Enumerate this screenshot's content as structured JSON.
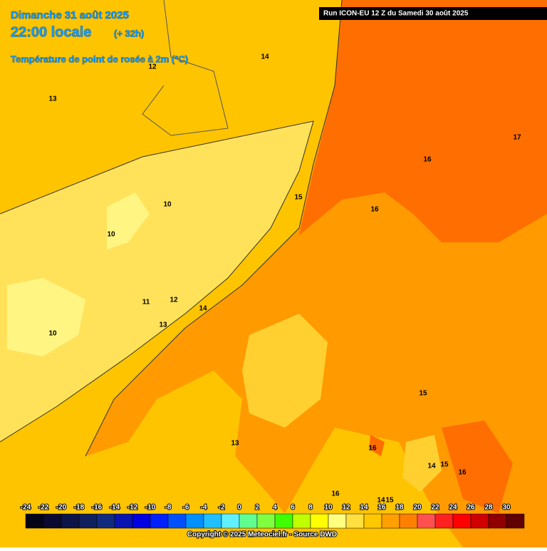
{
  "header": {
    "date": "Dimanche 31 août 2025",
    "time": "22:00 locale",
    "lead": "(+ 32h)",
    "variable": "Température de point de rosée à 2m (°C)",
    "run": "Run ICON-EU 12 Z du Samedi 30 août 2025"
  },
  "contour_labels": [
    "14",
    "12",
    "13",
    "17",
    "16",
    "15",
    "16",
    "10",
    "10",
    "11",
    "12",
    "14",
    "13",
    "10",
    "15",
    "13",
    "16",
    "14",
    "15",
    "16",
    "16",
    "14",
    "15"
  ],
  "colorbar": {
    "labels": [
      "-24",
      "-22",
      "-20",
      "-18",
      "-16",
      "-14",
      "-12",
      "-10",
      "-8",
      "-6",
      "-4",
      "-2",
      "0",
      "2",
      "4",
      "6",
      "8",
      "10",
      "12",
      "14",
      "16",
      "18",
      "20",
      "22",
      "24",
      "26",
      "28",
      "30"
    ],
    "colors": [
      "#05051a",
      "#0a0a30",
      "#0d1448",
      "#10205e",
      "#102a80",
      "#0a14b0",
      "#0000e0",
      "#0020ff",
      "#0050ff",
      "#0090ff",
      "#20c0ff",
      "#60f0ff",
      "#60ff90",
      "#80ff40",
      "#40ff00",
      "#c0ff00",
      "#ffff00",
      "#ffff80",
      "#ffe040",
      "#ffc800",
      "#ffa000",
      "#ff8000",
      "#ff5050",
      "#ff2020",
      "#ff0000",
      "#d00000",
      "#900000",
      "#600000"
    ]
  },
  "footer": {
    "copyright": "Copyright © 2025 Meteociel.fr - Source DWD"
  }
}
